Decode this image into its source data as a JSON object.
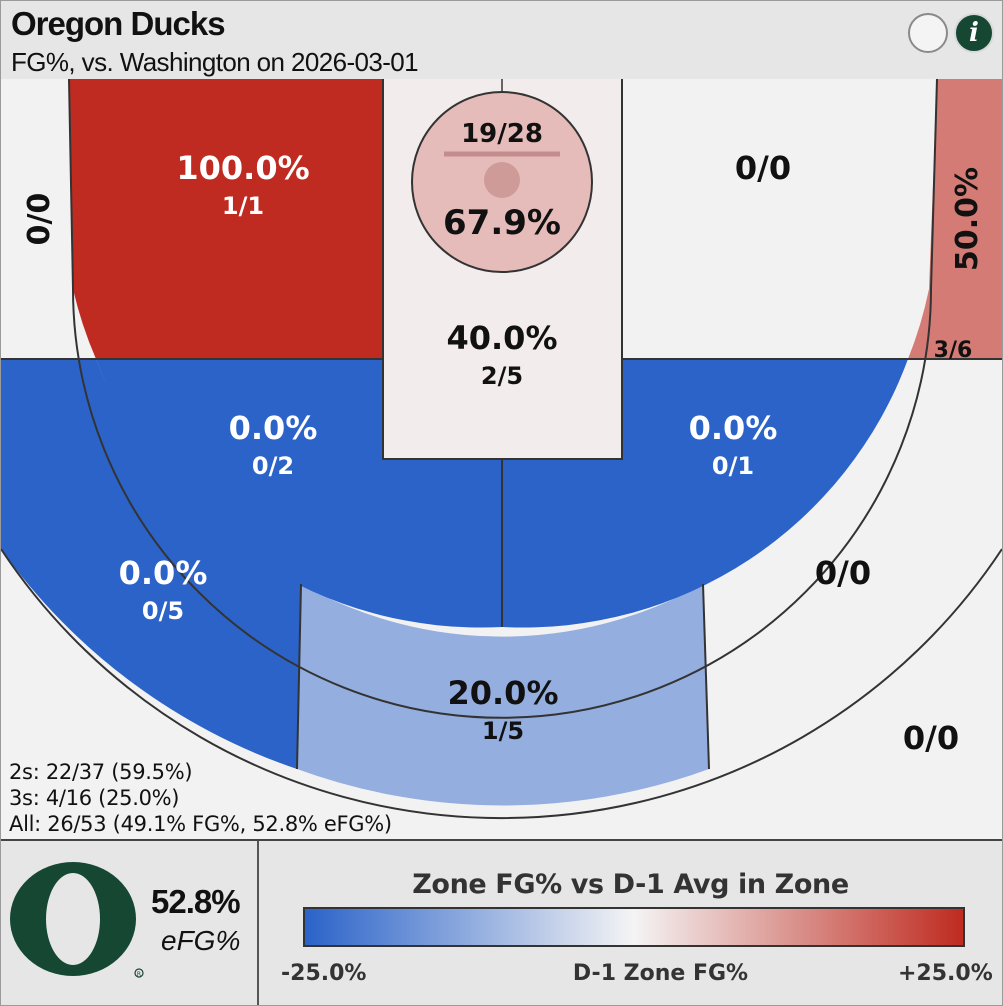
{
  "header": {
    "team": "Oregon Ducks",
    "subtitle": "FG%, vs. Washington on 2026-03-01",
    "info_label": "i"
  },
  "chart_data": {
    "type": "heatmap",
    "title": "Oregon Ducks",
    "subtitle": "FG%, vs. Washington on 2026-03-01",
    "zones": [
      {
        "name": "left-corner-three",
        "pct": "",
        "frac": "0/0",
        "diff": 0,
        "empty": true
      },
      {
        "name": "left-baseline-mid",
        "pct": "100.0%",
        "frac": "1/1",
        "diff": 25
      },
      {
        "name": "paint-restricted-area",
        "pct": "67.9%",
        "frac": "19/28",
        "diff": 7
      },
      {
        "name": "paint-lane",
        "pct": "40.0%",
        "frac": "2/5",
        "diff": 1
      },
      {
        "name": "right-baseline-mid",
        "pct": "",
        "frac": "0/0",
        "diff": 0,
        "empty": true
      },
      {
        "name": "right-corner-three",
        "pct": "50.0%",
        "frac": "3/6",
        "diff": 15
      },
      {
        "name": "left-elbow-mid",
        "pct": "0.0%",
        "frac": "0/2",
        "diff": -25
      },
      {
        "name": "right-elbow-mid",
        "pct": "0.0%",
        "frac": "0/1",
        "diff": -25
      },
      {
        "name": "left-wing-three",
        "pct": "0.0%",
        "frac": "0/5",
        "diff": -25
      },
      {
        "name": "top-key-three",
        "pct": "20.0%",
        "frac": "1/5",
        "diff": -12
      },
      {
        "name": "right-wing-three",
        "pct": "",
        "frac": "0/0",
        "diff": 0,
        "empty": true
      },
      {
        "name": "deep-right-three",
        "pct": "",
        "frac": "0/0",
        "diff": 0,
        "empty": true
      }
    ],
    "legend": {
      "title": "Zone FG% vs D-1 Avg in Zone",
      "min_label": "-25.0%",
      "mid_label": "D-1 Zone FG%",
      "max_label": "+25.0%",
      "range": [
        -25,
        25
      ],
      "colors": {
        "low": "#2b63c9",
        "mid": "#f4f4f4",
        "high": "#bf2b20"
      }
    }
  },
  "summary": {
    "twos": "2s: 22/37 (59.5%)",
    "threes": "3s: 4/16 (25.0%)",
    "all": "All: 26/53 (49.1% FG%, 52.8% eFG%)"
  },
  "footer": {
    "efg_value": "52.8%",
    "efg_label": "eFG%",
    "logo_color": "#154733"
  }
}
